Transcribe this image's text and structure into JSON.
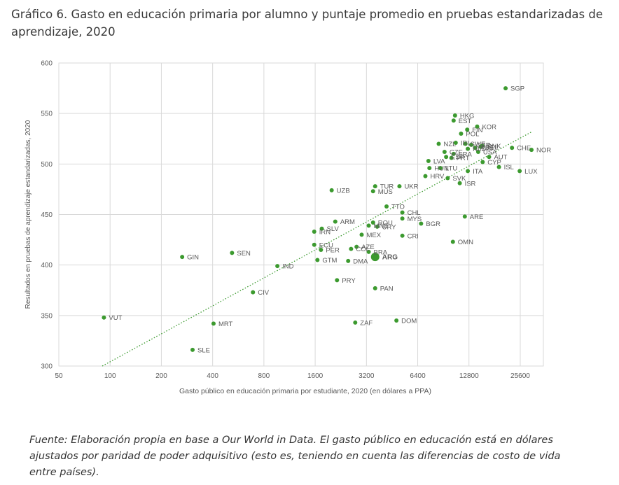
{
  "figure_title": "Gráfico 6. Gasto en educación primaria por alumno y puntaje promedio en pruebas estandarizadas de aprendizaje, 2020",
  "source_note": "Fuente: Elaboración propia en base a Our World in Data. El gasto público en educación está en dólares ajustados por paridad de poder adquisitivo (esto es, teniendo en cuenta las diferencias de costo de vida entre países).",
  "colors": {
    "point": "#3c9a2f",
    "trend": "#3c9a2f",
    "grid": "#d9d9d9",
    "axis_text": "#595959"
  },
  "chart_data": {
    "type": "scatter",
    "xlabel": "Gasto público en educación primaria por estudiante, 2020 (en dólares a PPA)",
    "ylabel": "Resultados en pruebas de aprendizaje estandarizadas, 2020",
    "x_scale": "log2",
    "xlim": [
      50,
      35000
    ],
    "ylim": [
      300,
      600
    ],
    "x_ticks": [
      50,
      100,
      200,
      400,
      800,
      1600,
      3200,
      6400,
      12800,
      25600
    ],
    "x_tick_labels": [
      "50",
      "100",
      "200",
      "400",
      "800",
      "1600",
      "3200",
      "6400",
      "12800",
      "25600"
    ],
    "y_ticks": [
      300,
      350,
      400,
      450,
      500,
      550,
      600
    ],
    "y_tick_labels": [
      "300",
      "350",
      "400",
      "450",
      "500",
      "550",
      "600"
    ],
    "grid": true,
    "trendline": {
      "style": "dotted",
      "x": [
        90,
        30000
      ],
      "y": [
        300,
        532
      ]
    },
    "highlight": "ARG",
    "points": [
      {
        "label": "SGP",
        "x": 21000,
        "y": 575
      },
      {
        "label": "HKG",
        "x": 10600,
        "y": 548
      },
      {
        "label": "EST",
        "x": 10400,
        "y": 543
      },
      {
        "label": "KOR",
        "x": 14300,
        "y": 537
      },
      {
        "label": "FIN",
        "x": 12500,
        "y": 534
      },
      {
        "label": "POL",
        "x": 11500,
        "y": 530
      },
      {
        "label": "NZL",
        "x": 8500,
        "y": 520
      },
      {
        "label": "IRL",
        "x": 10700,
        "y": 521
      },
      {
        "label": "SWE",
        "x": 12200,
        "y": 520
      },
      {
        "label": "GBR",
        "x": 13200,
        "y": 519
      },
      {
        "label": "DNK",
        "x": 15300,
        "y": 518
      },
      {
        "label": "AUS",
        "x": 13900,
        "y": 516
      },
      {
        "label": "BEL",
        "x": 15000,
        "y": 517
      },
      {
        "label": "NLD",
        "x": 12600,
        "y": 515
      },
      {
        "label": "CHE",
        "x": 22900,
        "y": 516
      },
      {
        "label": "NOR",
        "x": 29800,
        "y": 514
      },
      {
        "label": "USA",
        "x": 14500,
        "y": 512
      },
      {
        "label": "CZE",
        "x": 9200,
        "y": 512
      },
      {
        "label": "FRA",
        "x": 10400,
        "y": 510
      },
      {
        "label": "ESP",
        "x": 9400,
        "y": 507
      },
      {
        "label": "PRT",
        "x": 10100,
        "y": 506
      },
      {
        "label": "AUT",
        "x": 16800,
        "y": 507
      },
      {
        "label": "CYP",
        "x": 15400,
        "y": 502
      },
      {
        "label": "LVA",
        "x": 7400,
        "y": 503
      },
      {
        "label": "ISL",
        "x": 19200,
        "y": 497
      },
      {
        "label": "HUN",
        "x": 7500,
        "y": 496
      },
      {
        "label": "LTU",
        "x": 8700,
        "y": 496
      },
      {
        "label": "ITA",
        "x": 12600,
        "y": 493
      },
      {
        "label": "LUX",
        "x": 25400,
        "y": 493
      },
      {
        "label": "HRV",
        "x": 7100,
        "y": 488
      },
      {
        "label": "SVK",
        "x": 9600,
        "y": 486
      },
      {
        "label": "ISR",
        "x": 11300,
        "y": 481
      },
      {
        "label": "UKR",
        "x": 5000,
        "y": 478
      },
      {
        "label": "TUR",
        "x": 3600,
        "y": 478
      },
      {
        "label": "MUS",
        "x": 3500,
        "y": 473
      },
      {
        "label": "UZB",
        "x": 2000,
        "y": 474
      },
      {
        "label": "TTO",
        "x": 4200,
        "y": 458
      },
      {
        "label": "CHL",
        "x": 5200,
        "y": 452
      },
      {
        "label": "ARE",
        "x": 12100,
        "y": 448
      },
      {
        "label": "MYS",
        "x": 5200,
        "y": 446
      },
      {
        "label": "ARM",
        "x": 2100,
        "y": 443
      },
      {
        "label": "ROU",
        "x": 3500,
        "y": 442
      },
      {
        "label": "BGR",
        "x": 6700,
        "y": 441
      },
      {
        "label": "MNE",
        "x": 3300,
        "y": 439
      },
      {
        "label": "URY",
        "x": 3700,
        "y": 438
      },
      {
        "label": "SLV",
        "x": 1750,
        "y": 436
      },
      {
        "label": "IRN",
        "x": 1580,
        "y": 433
      },
      {
        "label": "MEX",
        "x": 3000,
        "y": 430
      },
      {
        "label": "CRI",
        "x": 5200,
        "y": 429
      },
      {
        "label": "OMN",
        "x": 10300,
        "y": 423
      },
      {
        "label": "ECU",
        "x": 1580,
        "y": 420
      },
      {
        "label": "AZE",
        "x": 2800,
        "y": 418
      },
      {
        "label": "COL",
        "x": 2600,
        "y": 416
      },
      {
        "label": "PER",
        "x": 1730,
        "y": 415
      },
      {
        "label": "BRA",
        "x": 3300,
        "y": 413
      },
      {
        "label": "SEN",
        "x": 520,
        "y": 412
      },
      {
        "label": "GIN",
        "x": 265,
        "y": 408
      },
      {
        "label": "ARG",
        "x": 3600,
        "y": 408
      },
      {
        "label": "GTM",
        "x": 1650,
        "y": 405
      },
      {
        "label": "DMA",
        "x": 2500,
        "y": 404
      },
      {
        "label": "IND",
        "x": 960,
        "y": 399
      },
      {
        "label": "PRY",
        "x": 2150,
        "y": 385
      },
      {
        "label": "PAN",
        "x": 3600,
        "y": 377
      },
      {
        "label": "CIV",
        "x": 690,
        "y": 373
      },
      {
        "label": "VUT",
        "x": 92,
        "y": 348
      },
      {
        "label": "DOM",
        "x": 4800,
        "y": 345
      },
      {
        "label": "MRT",
        "x": 405,
        "y": 342
      },
      {
        "label": "ZAF",
        "x": 2750,
        "y": 343
      },
      {
        "label": "SLE",
        "x": 305,
        "y": 316
      }
    ]
  }
}
